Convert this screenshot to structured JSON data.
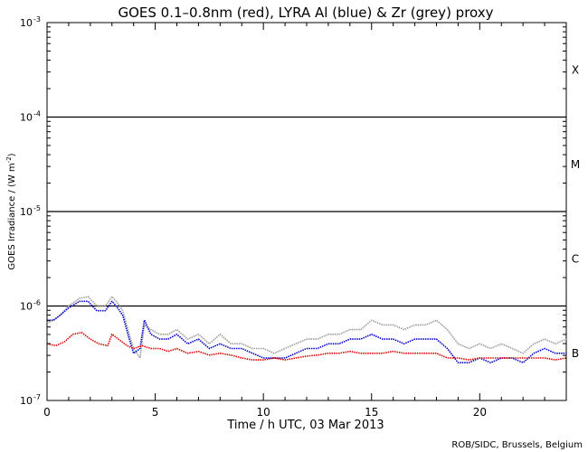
{
  "chart_data": {
    "type": "line",
    "title": "GOES 0.1–0.8nm (red), LYRA Al (blue) & Zr (grey) proxy",
    "xlabel": "Time / h UTC, 03 Mar 2013",
    "ylabel": "GOES Irradiance / (W m^-2)",
    "ylabel_parts": {
      "main": "GOES Irradiance / (W m",
      "sup": "-2",
      "end": ")"
    },
    "credit": "ROB/SIDC, Brussels, Belgium",
    "xlim": [
      0,
      24
    ],
    "ylim_log10": [
      -7,
      -3
    ],
    "y_scale": "log",
    "x_ticks": [
      {
        "value": 0,
        "label": "0"
      },
      {
        "value": 5,
        "label": "5"
      },
      {
        "value": 10,
        "label": "10"
      },
      {
        "value": 15,
        "label": "15"
      },
      {
        "value": 20,
        "label": "20"
      }
    ],
    "y_ticks": [
      {
        "exp": -7,
        "base": "10",
        "sup": "-7"
      },
      {
        "exp": -6,
        "base": "10",
        "sup": "-6"
      },
      {
        "exp": -5,
        "base": "10",
        "sup": "-5"
      },
      {
        "exp": -4,
        "base": "10",
        "sup": "-4"
      },
      {
        "exp": -3,
        "base": "10",
        "sup": "-3"
      }
    ],
    "class_lines_log10": [
      -6,
      -5,
      -4
    ],
    "flare_classes": [
      {
        "label": "B",
        "log10_mid": -6.5
      },
      {
        "label": "C",
        "log10_mid": -5.5
      },
      {
        "label": "M",
        "log10_mid": -4.5
      },
      {
        "label": "X",
        "log10_mid": -3.5
      }
    ],
    "series": [
      {
        "name": "LYRA Zr proxy",
        "color": "#9a9a9a",
        "x": [
          0,
          0.3,
          0.6,
          1.0,
          1.5,
          1.9,
          2.3,
          2.7,
          3.0,
          3.2,
          3.5,
          3.8,
          4.0,
          4.3,
          4.5,
          4.8,
          5.2,
          5.6,
          6.0,
          6.5,
          7.0,
          7.5,
          8.0,
          8.5,
          9.0,
          9.5,
          10.0,
          10.5,
          11.0,
          11.5,
          12.0,
          12.5,
          13.0,
          13.5,
          14.0,
          14.5,
          15.0,
          15.5,
          16.0,
          16.5,
          17.0,
          17.5,
          18.0,
          18.5,
          19.0,
          19.5,
          20.0,
          20.5,
          21.0,
          21.5,
          22.0,
          22.5,
          23.0,
          23.5,
          24.0
        ],
        "log10": [
          -6.18,
          -6.15,
          -6.1,
          -6.0,
          -5.92,
          -5.9,
          -6.0,
          -6.0,
          -5.9,
          -5.95,
          -6.05,
          -6.3,
          -6.45,
          -6.55,
          -6.2,
          -6.25,
          -6.3,
          -6.3,
          -6.25,
          -6.35,
          -6.3,
          -6.4,
          -6.3,
          -6.4,
          -6.4,
          -6.45,
          -6.45,
          -6.5,
          -6.45,
          -6.4,
          -6.35,
          -6.35,
          -6.3,
          -6.3,
          -6.25,
          -6.25,
          -6.15,
          -6.2,
          -6.2,
          -6.25,
          -6.2,
          -6.2,
          -6.15,
          -6.25,
          -6.4,
          -6.45,
          -6.4,
          -6.45,
          -6.4,
          -6.45,
          -6.5,
          -6.4,
          -6.35,
          -6.4,
          -6.35
        ]
      },
      {
        "name": "LYRA Al proxy",
        "color": "#0000cc",
        "x": [
          0,
          0.3,
          0.6,
          1.0,
          1.5,
          1.9,
          2.3,
          2.7,
          3.0,
          3.2,
          3.5,
          3.8,
          4.0,
          4.3,
          4.5,
          4.8,
          5.2,
          5.6,
          6.0,
          6.5,
          7.0,
          7.5,
          8.0,
          8.5,
          9.0,
          9.5,
          10.0,
          10.5,
          11.0,
          11.5,
          12.0,
          12.5,
          13.0,
          13.5,
          14.0,
          14.5,
          15.0,
          15.5,
          16.0,
          16.5,
          17.0,
          17.5,
          18.0,
          18.5,
          19.0,
          19.5,
          20.0,
          20.5,
          21.0,
          21.5,
          22.0,
          22.5,
          23.0,
          23.5,
          24.0
        ],
        "log10": [
          -6.15,
          -6.15,
          -6.1,
          -6.02,
          -5.95,
          -5.95,
          -6.05,
          -6.05,
          -5.95,
          -6.0,
          -6.1,
          -6.35,
          -6.5,
          -6.45,
          -6.15,
          -6.3,
          -6.35,
          -6.35,
          -6.3,
          -6.4,
          -6.35,
          -6.45,
          -6.4,
          -6.45,
          -6.45,
          -6.5,
          -6.55,
          -6.55,
          -6.55,
          -6.5,
          -6.45,
          -6.45,
          -6.4,
          -6.4,
          -6.35,
          -6.35,
          -6.3,
          -6.35,
          -6.35,
          -6.4,
          -6.35,
          -6.35,
          -6.35,
          -6.45,
          -6.6,
          -6.6,
          -6.55,
          -6.6,
          -6.55,
          -6.55,
          -6.6,
          -6.5,
          -6.45,
          -6.5,
          -6.5
        ]
      },
      {
        "name": "GOES 0.1-0.8nm",
        "color": "#dd0000",
        "x": [
          0,
          0.4,
          0.8,
          1.2,
          1.6,
          2.0,
          2.4,
          2.8,
          3.0,
          3.3,
          3.7,
          4.0,
          4.4,
          4.8,
          5.2,
          5.6,
          6.0,
          6.5,
          7.0,
          7.5,
          8.0,
          8.5,
          9.0,
          9.5,
          10.0,
          10.5,
          11.0,
          11.5,
          12.0,
          12.5,
          13.0,
          13.5,
          14.0,
          14.5,
          15.0,
          15.5,
          16.0,
          16.5,
          17.0,
          17.5,
          18.0,
          18.5,
          19.0,
          19.5,
          20.0,
          20.5,
          21.0,
          21.5,
          22.0,
          22.5,
          23.0,
          23.5,
          24.0
        ],
        "log10": [
          -6.4,
          -6.42,
          -6.38,
          -6.3,
          -6.28,
          -6.35,
          -6.4,
          -6.42,
          -6.3,
          -6.35,
          -6.42,
          -6.45,
          -6.42,
          -6.45,
          -6.45,
          -6.48,
          -6.45,
          -6.5,
          -6.48,
          -6.52,
          -6.5,
          -6.52,
          -6.55,
          -6.57,
          -6.57,
          -6.55,
          -6.57,
          -6.55,
          -6.53,
          -6.52,
          -6.5,
          -6.5,
          -6.48,
          -6.5,
          -6.5,
          -6.5,
          -6.48,
          -6.5,
          -6.5,
          -6.5,
          -6.5,
          -6.55,
          -6.55,
          -6.57,
          -6.55,
          -6.55,
          -6.55,
          -6.55,
          -6.55,
          -6.55,
          -6.55,
          -6.57,
          -6.55
        ]
      }
    ]
  }
}
